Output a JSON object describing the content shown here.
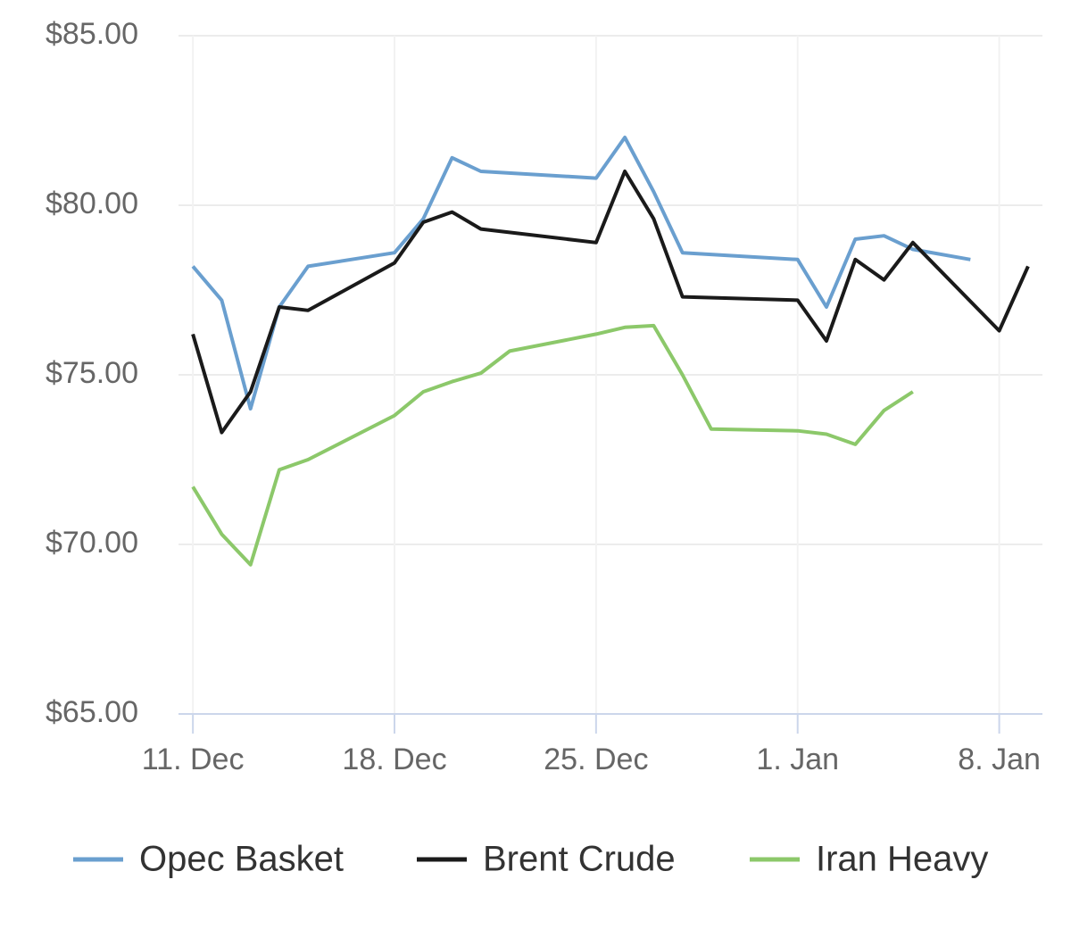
{
  "chart_data": {
    "type": "line",
    "xlim": [
      -0.5,
      29.5
    ],
    "xticks": [
      {
        "value": 0,
        "label": "11. Dec"
      },
      {
        "value": 7,
        "label": "18. Dec"
      },
      {
        "value": 14,
        "label": "25. Dec"
      },
      {
        "value": 21,
        "label": "1. Jan"
      },
      {
        "value": 28,
        "label": "8. Jan"
      }
    ],
    "ylim": [
      65,
      85
    ],
    "yticks": [
      {
        "value": 65,
        "label": "$65.00"
      },
      {
        "value": 70,
        "label": "$70.00"
      },
      {
        "value": 75,
        "label": "$75.00"
      },
      {
        "value": 80,
        "label": "$80.00"
      },
      {
        "value": 85,
        "label": "$85.00"
      }
    ],
    "grid": true,
    "legend": "bottom",
    "series": [
      {
        "name": "Opec Basket",
        "color": "#6a9fcf",
        "x": [
          0,
          1,
          2,
          3,
          4,
          7,
          8,
          9,
          10,
          14,
          15,
          16,
          17,
          21,
          22,
          23,
          24,
          25,
          27
        ],
        "values": [
          78.2,
          77.2,
          74.0,
          77.0,
          78.2,
          78.6,
          79.6,
          81.4,
          81.0,
          80.8,
          82.0,
          80.4,
          78.6,
          78.4,
          77.0,
          79.0,
          79.1,
          78.7,
          78.4
        ]
      },
      {
        "name": "Brent Crude",
        "color": "#1a1a1a",
        "x": [
          0,
          1,
          2,
          3,
          4,
          7,
          8,
          9,
          10,
          14,
          15,
          16,
          17,
          21,
          22,
          23,
          24,
          25,
          28,
          29
        ],
        "values": [
          76.2,
          73.3,
          74.5,
          77.0,
          76.9,
          78.3,
          79.5,
          79.8,
          79.3,
          78.9,
          81.0,
          79.6,
          77.3,
          77.2,
          76.0,
          78.4,
          77.8,
          78.9,
          76.3,
          78.2
        ]
      },
      {
        "name": "Iran Heavy",
        "color": "#8cc86a",
        "x": [
          0,
          1,
          2,
          3,
          4,
          7,
          8,
          9,
          10,
          11,
          14,
          15,
          16,
          17,
          18,
          21,
          22,
          23,
          24,
          25
        ],
        "values": [
          71.7,
          70.3,
          69.4,
          72.2,
          72.5,
          73.8,
          74.5,
          74.8,
          75.05,
          75.7,
          76.2,
          76.4,
          76.45,
          75.0,
          73.4,
          73.35,
          73.25,
          72.95,
          73.95,
          74.5
        ]
      }
    ]
  }
}
